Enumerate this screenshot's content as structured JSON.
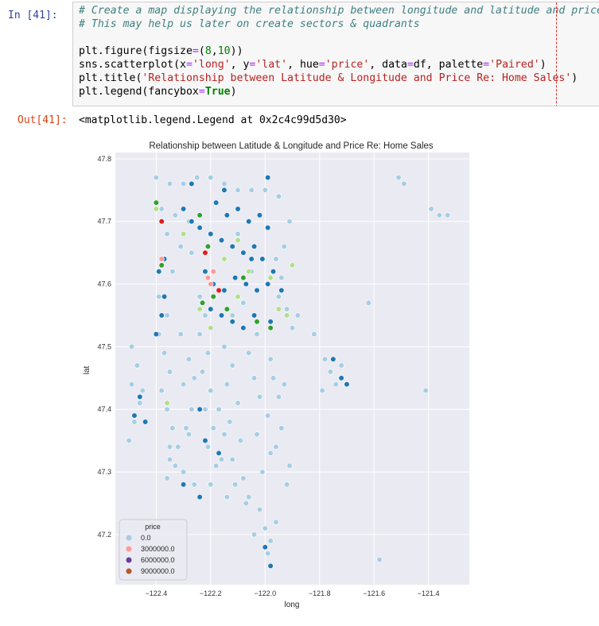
{
  "cell": {
    "in_prompt": "In [41]:",
    "out_prompt": "Out[41]:",
    "code_lines": [
      [
        {
          "t": "# Create a map displaying the relationship between longitude and latitude and price.",
          "c": "cm"
        }
      ],
      [
        {
          "t": "# This may help us later on create sectors & quadrants",
          "c": "cm"
        }
      ],
      [
        {
          "t": "",
          "c": ""
        }
      ],
      [
        {
          "t": "plt.figure(figsize",
          "c": ""
        },
        {
          "t": "=",
          "c": "op"
        },
        {
          "t": "(",
          "c": ""
        },
        {
          "t": "8",
          "c": "num"
        },
        {
          "t": ",",
          "c": ""
        },
        {
          "t": "10",
          "c": "num"
        },
        {
          "t": "))",
          "c": ""
        }
      ],
      [
        {
          "t": "sns.scatterplot(x",
          "c": ""
        },
        {
          "t": "=",
          "c": "op"
        },
        {
          "t": "'long'",
          "c": "str"
        },
        {
          "t": ", y",
          "c": ""
        },
        {
          "t": "=",
          "c": "op"
        },
        {
          "t": "'lat'",
          "c": "str"
        },
        {
          "t": ", hue",
          "c": ""
        },
        {
          "t": "=",
          "c": "op"
        },
        {
          "t": "'price'",
          "c": "str"
        },
        {
          "t": ", data",
          "c": ""
        },
        {
          "t": "=",
          "c": "op"
        },
        {
          "t": "df, palette",
          "c": ""
        },
        {
          "t": "=",
          "c": "op"
        },
        {
          "t": "'Paired'",
          "c": "str"
        },
        {
          "t": ")",
          "c": ""
        }
      ],
      [
        {
          "t": "plt.title(",
          "c": ""
        },
        {
          "t": "'Relationship between Latitude & Longitude and Price Re: Home Sales'",
          "c": "str"
        },
        {
          "t": ")",
          "c": ""
        }
      ],
      [
        {
          "t": "plt.legend(fancybox",
          "c": ""
        },
        {
          "t": "=",
          "c": "op"
        },
        {
          "t": "True",
          "c": "kw"
        },
        {
          "t": ")",
          "c": ""
        }
      ]
    ],
    "output_text": "<matplotlib.legend.Legend at 0x2c4c99d5d30>"
  },
  "chart_data": {
    "type": "scatter",
    "title": "Relationship between Latitude & Longitude and Price Re: Home Sales",
    "xlabel": "long",
    "ylabel": "lat",
    "xlim": [
      -122.55,
      -121.25
    ],
    "ylim": [
      47.12,
      47.81
    ],
    "xticks": [
      -122.4,
      -122.2,
      -122.0,
      -121.8,
      -121.6,
      -121.4
    ],
    "xtick_labels": [
      "−122.4",
      "−122.2",
      "−122.0",
      "−121.8",
      "−121.6",
      "−121.4"
    ],
    "yticks": [
      47.2,
      47.3,
      47.4,
      47.5,
      47.6,
      47.7,
      47.8
    ],
    "ytick_labels": [
      "47.2",
      "47.3",
      "47.4",
      "47.5",
      "47.6",
      "47.7",
      "47.8"
    ],
    "grid": true,
    "plot_background": "#eaeaf2",
    "legend": {
      "title": "price",
      "location": "lower-left",
      "entries": [
        {
          "label": "0.0",
          "color": "#a6cee3"
        },
        {
          "label": "3000000.0",
          "color": "#fb9a99"
        },
        {
          "label": "6000000.0",
          "color": "#6a3d9a"
        },
        {
          "label": "9000000.0",
          "color": "#b15928"
        }
      ]
    },
    "series": [
      {
        "name": "0.0",
        "color": "#a6cee3",
        "points": [
          [
            -122.4,
            47.77
          ],
          [
            -122.35,
            47.76
          ],
          [
            -122.3,
            47.76
          ],
          [
            -122.25,
            47.77
          ],
          [
            -122.2,
            47.77
          ],
          [
            -122.15,
            47.76
          ],
          [
            -122.1,
            47.75
          ],
          [
            -122.05,
            47.75
          ],
          [
            -122.0,
            47.75
          ],
          [
            -121.95,
            47.74
          ],
          [
            -122.38,
            47.72
          ],
          [
            -122.33,
            47.71
          ],
          [
            -122.28,
            47.7
          ],
          [
            -122.36,
            47.68
          ],
          [
            -122.31,
            47.66
          ],
          [
            -122.27,
            47.65
          ],
          [
            -122.38,
            47.64
          ],
          [
            -122.34,
            47.62
          ],
          [
            -122.39,
            47.58
          ],
          [
            -122.36,
            47.55
          ],
          [
            -122.39,
            47.52
          ],
          [
            -122.37,
            47.49
          ],
          [
            -122.35,
            47.46
          ],
          [
            -122.38,
            47.43
          ],
          [
            -122.36,
            47.4
          ],
          [
            -122.34,
            47.37
          ],
          [
            -122.35,
            47.34
          ],
          [
            -122.33,
            47.31
          ],
          [
            -122.36,
            47.29
          ],
          [
            -122.24,
            47.58
          ],
          [
            -122.22,
            47.55
          ],
          [
            -122.24,
            47.52
          ],
          [
            -122.21,
            47.49
          ],
          [
            -122.23,
            47.46
          ],
          [
            -122.2,
            47.43
          ],
          [
            -122.22,
            47.4
          ],
          [
            -122.19,
            47.37
          ],
          [
            -122.21,
            47.34
          ],
          [
            -122.18,
            47.31
          ],
          [
            -122.2,
            47.28
          ],
          [
            -122.15,
            47.5
          ],
          [
            -122.12,
            47.47
          ],
          [
            -122.14,
            47.44
          ],
          [
            -122.1,
            47.41
          ],
          [
            -122.13,
            47.38
          ],
          [
            -122.09,
            47.35
          ],
          [
            -122.12,
            47.32
          ],
          [
            -122.08,
            47.29
          ],
          [
            -122.06,
            47.26
          ],
          [
            -122.04,
            47.45
          ],
          [
            -122.02,
            47.42
          ],
          [
            -121.99,
            47.39
          ],
          [
            -122.03,
            47.36
          ],
          [
            -121.98,
            47.33
          ],
          [
            -122.01,
            47.3
          ],
          [
            -121.96,
            47.34
          ],
          [
            -121.94,
            47.37
          ],
          [
            -121.91,
            47.31
          ],
          [
            -121.92,
            47.28
          ],
          [
            -122.02,
            47.24
          ],
          [
            -122.0,
            47.21
          ],
          [
            -121.98,
            47.19
          ],
          [
            -122.04,
            47.2
          ],
          [
            -121.96,
            47.22
          ],
          [
            -121.99,
            47.17
          ],
          [
            -122.49,
            47.5
          ],
          [
            -122.47,
            47.47
          ],
          [
            -122.49,
            47.44
          ],
          [
            -122.46,
            47.41
          ],
          [
            -122.48,
            47.38
          ],
          [
            -122.5,
            47.35
          ],
          [
            -122.45,
            47.43
          ],
          [
            -122.35,
            47.32
          ],
          [
            -122.3,
            47.3
          ],
          [
            -122.26,
            47.28
          ],
          [
            -122.32,
            47.34
          ],
          [
            -122.28,
            47.36
          ],
          [
            -121.95,
            47.58
          ],
          [
            -121.92,
            47.56
          ],
          [
            -121.9,
            47.53
          ],
          [
            -121.88,
            47.55
          ],
          [
            -121.91,
            47.7
          ],
          [
            -121.93,
            47.66
          ],
          [
            -121.96,
            47.64
          ],
          [
            -121.94,
            47.61
          ],
          [
            -121.82,
            47.52
          ],
          [
            -121.78,
            47.48
          ],
          [
            -121.76,
            47.46
          ],
          [
            -121.72,
            47.47
          ],
          [
            -121.74,
            47.44
          ],
          [
            -121.79,
            47.43
          ],
          [
            -121.51,
            47.77
          ],
          [
            -121.49,
            47.76
          ],
          [
            -121.39,
            47.72
          ],
          [
            -121.36,
            47.71
          ],
          [
            -121.33,
            47.71
          ],
          [
            -121.62,
            47.57
          ],
          [
            -121.41,
            47.43
          ],
          [
            -121.58,
            47.16
          ],
          [
            -122.1,
            47.68
          ],
          [
            -122.05,
            47.62
          ],
          [
            -122.08,
            47.57
          ],
          [
            -122.03,
            47.52
          ],
          [
            -122.12,
            47.55
          ],
          [
            -122.06,
            47.49
          ],
          [
            -122.31,
            47.52
          ],
          [
            -122.28,
            47.48
          ],
          [
            -122.3,
            47.44
          ],
          [
            -122.27,
            47.4
          ],
          [
            -122.29,
            47.37
          ],
          [
            -122.26,
            47.45
          ],
          [
            -122.17,
            47.4
          ],
          [
            -122.15,
            47.36
          ],
          [
            -122.16,
            47.32
          ],
          [
            -122.11,
            47.28
          ],
          [
            -122.07,
            47.25
          ],
          [
            -122.14,
            47.26
          ],
          [
            -121.97,
            47.45
          ],
          [
            -121.95,
            47.42
          ],
          [
            -121.98,
            47.48
          ],
          [
            -121.93,
            47.44
          ]
        ]
      },
      {
        "name": "",
        "color": "#1f78b4",
        "points": [
          [
            -122.3,
            47.72
          ],
          [
            -122.27,
            47.7
          ],
          [
            -122.24,
            47.69
          ],
          [
            -122.2,
            47.68
          ],
          [
            -122.16,
            47.67
          ],
          [
            -122.12,
            47.66
          ],
          [
            -122.08,
            47.65
          ],
          [
            -122.05,
            47.64
          ],
          [
            -122.22,
            47.62
          ],
          [
            -122.19,
            47.6
          ],
          [
            -122.15,
            47.59
          ],
          [
            -122.11,
            47.61
          ],
          [
            -122.07,
            47.6
          ],
          [
            -122.03,
            47.59
          ],
          [
            -121.99,
            47.6
          ],
          [
            -122.18,
            47.73
          ],
          [
            -122.14,
            47.71
          ],
          [
            -122.1,
            47.72
          ],
          [
            -122.06,
            47.7
          ],
          [
            -122.02,
            47.71
          ],
          [
            -121.99,
            47.69
          ],
          [
            -122.2,
            47.56
          ],
          [
            -122.16,
            47.55
          ],
          [
            -122.12,
            47.54
          ],
          [
            -122.08,
            47.53
          ],
          [
            -122.04,
            47.55
          ],
          [
            -122.04,
            47.66
          ],
          [
            -122.01,
            47.64
          ],
          [
            -121.97,
            47.62
          ],
          [
            -121.94,
            47.59
          ],
          [
            -122.39,
            47.62
          ],
          [
            -122.37,
            47.58
          ],
          [
            -122.38,
            47.55
          ],
          [
            -122.4,
            47.52
          ],
          [
            -122.37,
            47.64
          ],
          [
            -122.24,
            47.4
          ],
          [
            -122.22,
            47.35
          ],
          [
            -122.17,
            47.33
          ],
          [
            -122.3,
            47.28
          ],
          [
            -122.24,
            47.26
          ],
          [
            -122.48,
            47.39
          ],
          [
            -122.46,
            47.42
          ],
          [
            -122.44,
            47.38
          ],
          [
            -122.0,
            47.18
          ],
          [
            -121.98,
            47.15
          ],
          [
            -121.75,
            47.48
          ],
          [
            -121.72,
            47.45
          ],
          [
            -121.7,
            47.44
          ],
          [
            -121.99,
            47.77
          ],
          [
            -122.27,
            47.76
          ],
          [
            -122.15,
            47.75
          ],
          [
            -121.98,
            47.54
          ]
        ]
      },
      {
        "name": "",
        "color": "#b2df8a",
        "points": [
          [
            -122.4,
            47.72
          ],
          [
            -122.3,
            47.68
          ],
          [
            -122.15,
            47.64
          ],
          [
            -122.1,
            47.58
          ],
          [
            -121.98,
            47.61
          ],
          [
            -122.24,
            47.56
          ],
          [
            -121.92,
            47.55
          ],
          [
            -121.9,
            47.63
          ],
          [
            -122.2,
            47.53
          ],
          [
            -122.36,
            47.41
          ],
          [
            -122.1,
            47.67
          ],
          [
            -122.06,
            47.62
          ],
          [
            -121.95,
            47.56
          ]
        ]
      },
      {
        "name": "",
        "color": "#33a02c",
        "points": [
          [
            -122.4,
            47.73
          ],
          [
            -122.24,
            47.71
          ],
          [
            -122.21,
            47.66
          ],
          [
            -122.19,
            47.58
          ],
          [
            -122.14,
            47.56
          ],
          [
            -122.23,
            47.57
          ],
          [
            -122.03,
            47.54
          ],
          [
            -121.98,
            47.53
          ],
          [
            -122.08,
            47.61
          ],
          [
            -122.38,
            47.63
          ]
        ]
      },
      {
        "name": "3000000.0",
        "color": "#fb9a99",
        "points": [
          [
            -122.21,
            47.61
          ],
          [
            -122.2,
            47.6
          ],
          [
            -122.38,
            47.64
          ],
          [
            -122.19,
            47.62
          ]
        ]
      },
      {
        "name": "",
        "color": "#e31a1c",
        "points": [
          [
            -122.22,
            47.65
          ],
          [
            -122.17,
            47.59
          ],
          [
            -122.38,
            47.7
          ]
        ]
      }
    ]
  }
}
